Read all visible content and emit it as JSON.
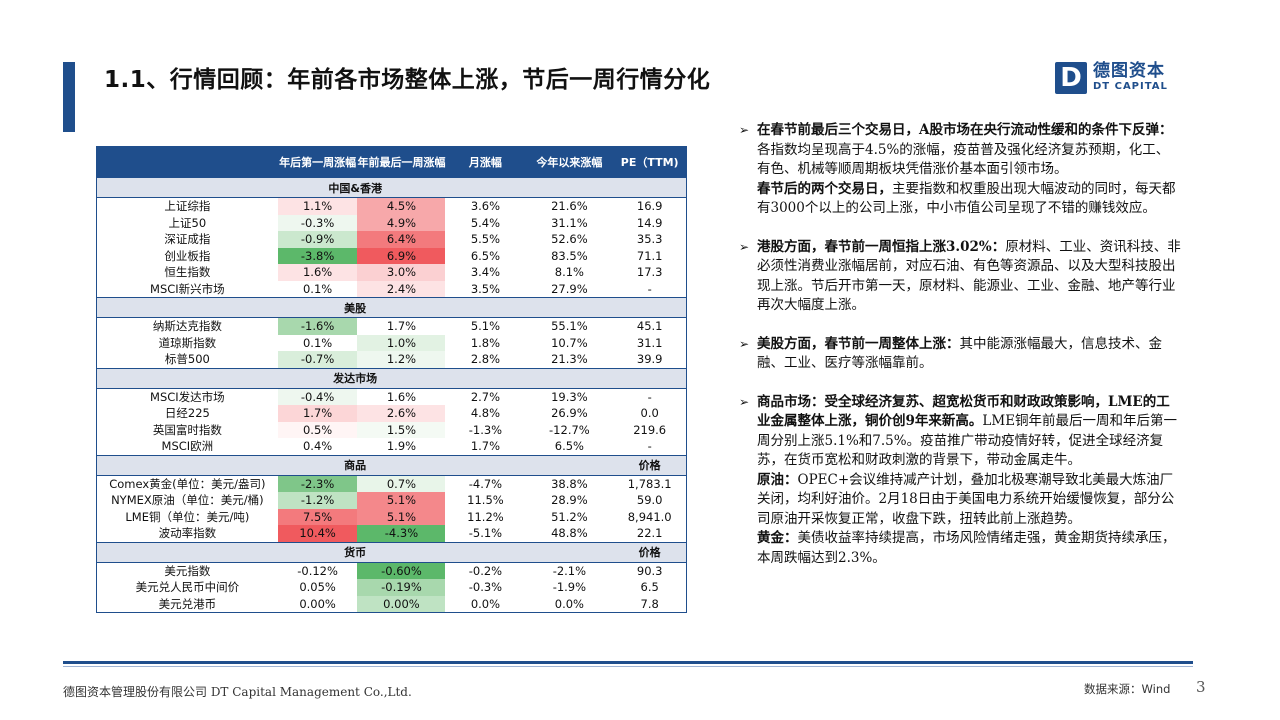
{
  "header": {
    "title": "1.1、行情回顾：年前各市场整体上涨，节后一周行情分化",
    "logo_mark": "D",
    "logo_cn": "德图资本",
    "logo_en": "DT CAPITAL"
  },
  "table": {
    "headers": [
      "",
      "年后第一周涨幅",
      "年前最后一周涨幅",
      "月涨幅",
      "今年以来涨幅",
      "PE（TTM)"
    ],
    "colors": {
      "green_strong": "#5cb86a",
      "green_mid": "#a8d8ad",
      "green_light": "#e2f2e3",
      "red_strong": "#f05a5e",
      "red_mid": "#f7a8aa",
      "red_light": "#fde3e4"
    },
    "sections": [
      {
        "name": "中国&香港",
        "extra": "",
        "rows": [
          {
            "name": "上证综指",
            "c1": "1.1%",
            "c2": "4.5%",
            "c3": "3.6%",
            "c4": "21.6%",
            "c5": "16.9",
            "bg1": "#fde3e4",
            "bg2": "#f7a8aa"
          },
          {
            "name": "上证50",
            "c1": "-0.3%",
            "c2": "4.9%",
            "c3": "5.4%",
            "c4": "31.1%",
            "c5": "14.9",
            "bg1": "#eef7ef",
            "bg2": "#f7a8aa"
          },
          {
            "name": "深证成指",
            "c1": "-0.9%",
            "c2": "6.4%",
            "c3": "5.5%",
            "c4": "52.6%",
            "c5": "35.3",
            "bg1": "#cbe8ce",
            "bg2": "#f37a7d"
          },
          {
            "name": "创业板指",
            "c1": "-3.8%",
            "c2": "6.9%",
            "c3": "6.5%",
            "c4": "83.5%",
            "c5": "71.1",
            "bg1": "#5cb86a",
            "bg2": "#f05a5e"
          },
          {
            "name": "恒生指数",
            "c1": "1.6%",
            "c2": "3.0%",
            "c3": "3.4%",
            "c4": "8.1%",
            "c5": "17.3",
            "bg1": "#fde3e4",
            "bg2": "#fbd0d2"
          },
          {
            "name": "MSCI新兴市场",
            "c1": "0.1%",
            "c2": "2.4%",
            "c3": "3.5%",
            "c4": "27.9%",
            "c5": "-",
            "bg1": "#ffffff",
            "bg2": "#fde3e4"
          }
        ]
      },
      {
        "name": "美股",
        "extra": "",
        "rows": [
          {
            "name": "纳斯达克指数",
            "c1": "-1.6%",
            "c2": "1.7%",
            "c3": "5.1%",
            "c4": "55.1%",
            "c5": "45.1",
            "bg1": "#a8d8ad",
            "bg2": "#ffffff"
          },
          {
            "name": "道琼斯指数",
            "c1": "0.1%",
            "c2": "1.0%",
            "c3": "1.8%",
            "c4": "10.7%",
            "c5": "31.1",
            "bg1": "#ffffff",
            "bg2": "#e2f2e3"
          },
          {
            "name": "标普500",
            "c1": "-0.7%",
            "c2": "1.2%",
            "c3": "2.8%",
            "c4": "21.3%",
            "c5": "39.9",
            "bg1": "#d9eedb",
            "bg2": "#eef7ef"
          }
        ]
      },
      {
        "name": "发达市场",
        "extra": "",
        "rows": [
          {
            "name": "MSCI发达市场",
            "c1": "-0.4%",
            "c2": "1.6%",
            "c3": "2.7%",
            "c4": "19.3%",
            "c5": "-",
            "bg1": "#eef7ef",
            "bg2": "#ffffff"
          },
          {
            "name": "日经225",
            "c1": "1.7%",
            "c2": "2.6%",
            "c3": "4.8%",
            "c4": "26.9%",
            "c5": "0.0",
            "bg1": "#fcd6d7",
            "bg2": "#fde3e4"
          },
          {
            "name": "英国富时指数",
            "c1": "0.5%",
            "c2": "1.5%",
            "c3": "-1.3%",
            "c4": "-12.7%",
            "c5": "219.6",
            "bg1": "#fff5f5",
            "bg2": "#f4faf4"
          },
          {
            "name": "MSCI欧洲",
            "c1": "0.4%",
            "c2": "1.9%",
            "c3": "1.7%",
            "c4": "6.5%",
            "c5": "-",
            "bg1": "#ffffff",
            "bg2": "#ffffff"
          }
        ]
      },
      {
        "name": "商品",
        "extra": "价格",
        "rows": [
          {
            "name": "Comex黄金(单位：美元/盎司)",
            "c1": "-2.3%",
            "c2": "0.7%",
            "c3": "-4.7%",
            "c4": "38.8%",
            "c5": "1,783.1",
            "bg1": "#7fc689",
            "bg2": "#e8f5e9"
          },
          {
            "name": "NYMEX原油（单位：美元/桶)",
            "c1": "-1.2%",
            "c2": "5.1%",
            "c3": "11.5%",
            "c4": "28.9%",
            "c5": "59.0",
            "bg1": "#bfe3c3",
            "bg2": "#f4888b"
          },
          {
            "name": "LME铜（单位：美元/吨)",
            "c1": "7.5%",
            "c2": "5.1%",
            "c3": "11.2%",
            "c4": "51.2%",
            "c5": "8,941.0",
            "bg1": "#f37a7d",
            "bg2": "#f4888b"
          },
          {
            "name": "波动率指数",
            "c1": "10.4%",
            "c2": "-4.3%",
            "c3": "-5.1%",
            "c4": "48.8%",
            "c5": "22.1",
            "bg1": "#f05a5e",
            "bg2": "#5cb86a"
          }
        ]
      },
      {
        "name": "货币",
        "extra": "价格",
        "rows": [
          {
            "name": "美元指数",
            "c1": "-0.12%",
            "c2": "-0.60%",
            "c3": "-0.2%",
            "c4": "-2.1%",
            "c5": "90.3",
            "bg1": "#ffffff",
            "bg2": "#5cb86a"
          },
          {
            "name": "美元兑人民币中间价",
            "c1": "0.05%",
            "c2": "-0.19%",
            "c3": "-0.3%",
            "c4": "-1.9%",
            "c5": "6.5",
            "bg1": "#ffffff",
            "bg2": "#a8d8ad"
          },
          {
            "name": "美元兑港币",
            "c1": "0.00%",
            "c2": "0.00%",
            "c3": "0.0%",
            "c4": "0.0%",
            "c5": "7.8",
            "bg1": "#ffffff",
            "bg2": "#bfe3c3"
          }
        ]
      }
    ]
  },
  "bullets": [
    {
      "paras": [
        {
          "bold": "在春节前最后三个交易日，A股市场在央行流动性缓和的条件下反弹：",
          "text": "各指数均呈现高于4.5%的涨幅，疫苗普及强化经济复苏预期，化工、有色、机械等顺周期板块凭借涨价基本面引领市场。"
        },
        {
          "bold": "春节后的两个交易日，",
          "text": "主要指数和权重股出现大幅波动的同时，每天都有3000个以上的公司上涨，中小市值公司呈现了不错的赚钱效应。"
        }
      ]
    },
    {
      "paras": [
        {
          "bold": "港股方面，春节前一周恒指上涨3.02%：",
          "text": "原材料、工业、资讯科技、非必须性消费业涨幅居前，对应石油、有色等资源品、以及大型科技股出现上涨。节后开市第一天，原材料、能源业、工业、金融、地产等行业再次大幅度上涨。"
        }
      ]
    },
    {
      "paras": [
        {
          "bold": "美股方面，春节前一周整体上涨：",
          "text": "其中能源涨幅最大，信息技术、金融、工业、医疗等涨幅靠前。"
        }
      ]
    },
    {
      "paras": [
        {
          "bold": "商品市场：受全球经济复苏、超宽松货币和财政政策影响，LME的工业金属整体上涨，铜价创9年来新高。",
          "text": "LME铜年前最后一周和年后第一周分别上涨5.1%和7.5%。疫苗推广带动疫情好转，促进全球经济复苏，在货币宽松和财政刺激的背景下，带动金属走牛。"
        },
        {
          "bold": "原油：",
          "text": "OPEC+会议维持减产计划，叠加北极寒潮导致北美最大炼油厂关闭，均利好油价。2月18日由于美国电力系统开始缓慢恢复，部分公司原油开采恢复正常，收盘下跌，扭转此前上涨趋势。"
        },
        {
          "bold": "黄金：",
          "text": "美债收益率持续提高，市场风险情绪走强，黄金期货持续承压，本周跌幅达到2.3%。"
        }
      ]
    }
  ],
  "footer": {
    "company": "德图资本管理股份有限公司 DT Capital Management Co.,Ltd.",
    "source": "数据来源：Wind",
    "page": "3"
  }
}
